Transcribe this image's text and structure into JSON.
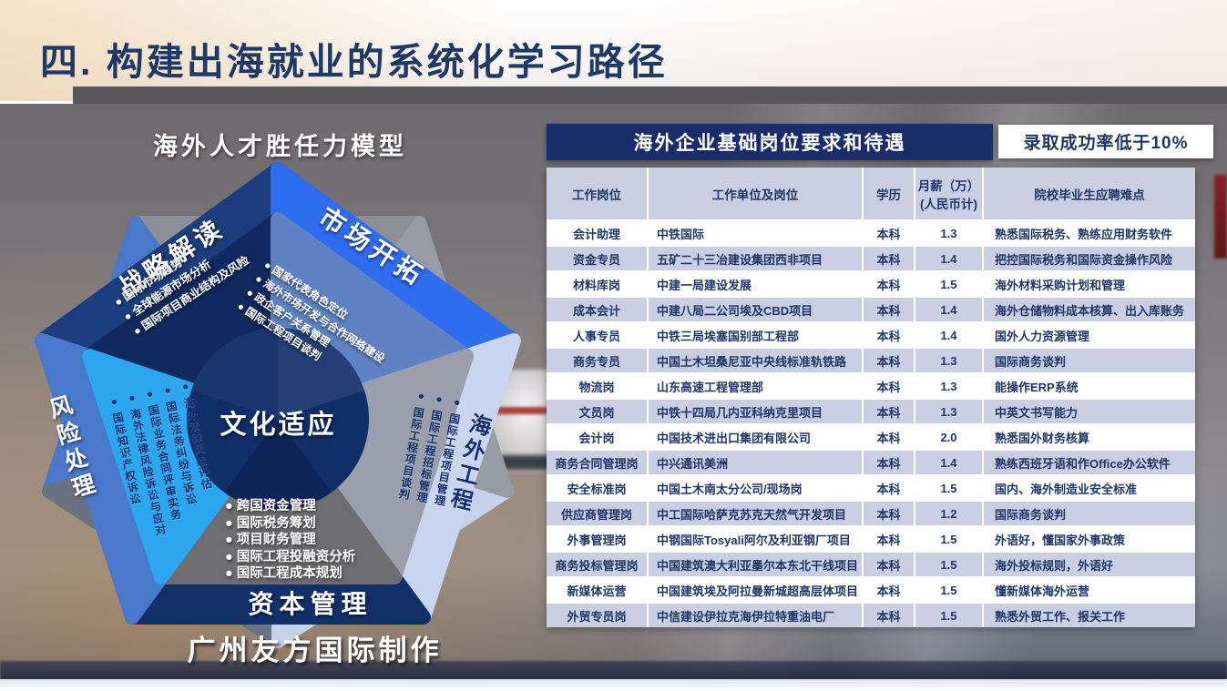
{
  "slide": {
    "title": "四. 构建出海就业的系统化学习路径"
  },
  "diagram": {
    "title": "海外人才胜任力模型",
    "center_label": "文化适应",
    "credit": "广州友方国际制作",
    "segments": [
      {
        "id": "strategy",
        "label": "战略解读",
        "bullets": [
          "国际市场趋势",
          "全球能源市场分析",
          "国际项目商业结构及风险"
        ]
      },
      {
        "id": "market",
        "label": "市场开拓",
        "bullets": [
          "国家代表角色定位",
          "海外市场开发与合作网络建设",
          "政企客户关系管理",
          "国际工程项目谈判"
        ]
      },
      {
        "id": "engineering",
        "label": "海外工程",
        "bullets": [
          "国际工程项目管理",
          "国际工程招标管理",
          "国际工程项目谈判"
        ]
      },
      {
        "id": "capital",
        "label": "资本管理",
        "bullets": [
          "跨国资金管理",
          "国际税务筹划",
          "项目财务管理",
          "国际工程投融资分析",
          "国际工程成本规划"
        ]
      },
      {
        "id": "risk",
        "label": "风险处理",
        "bullets": [
          "海外法律风险评估",
          "国际法务纠纷与诉讼",
          "国际业务合同评审实务",
          "海外法律风险诉讼与应对",
          "国际知识产权诉讼"
        ]
      }
    ],
    "colors": {
      "strategy_band": "#1c3e7e",
      "strategy_fill": "#122a5f",
      "market_band": "#2e6cf0",
      "market_fill": "#5f82c4",
      "engineering_band": "#c9d4ee",
      "engineering_fill": "#9aa0ab",
      "capital_band": "#133069",
      "capital_fill": "#6e6e71",
      "risk_band": "#4a78ca",
      "risk_fill": "#2aa7ee",
      "center_circle": "#102e6a",
      "backdrop_top": "#8e8f94",
      "backdrop_upper_left": "#4a77c9",
      "backdrop_lower_left": "#6a7282",
      "backdrop_lower_right": "#c6d2ec",
      "backdrop_right": "#979ba3"
    }
  },
  "panel": {
    "title": "海外企业基础岗位要求和待遇",
    "badge": "录取成功率低于10%",
    "colors": {
      "title_bg": "#1a2d6b",
      "title_text": "#ffffff",
      "badge_bg": "#ffffff",
      "badge_text": "#1e3766",
      "header_row_bg": "#c9cee3",
      "row_alt_bg": "#c9cee3",
      "row_bg": "#ffffff",
      "cell_text": "#1e3766"
    },
    "table": {
      "columns": [
        "工作岗位",
        "工作单位及岗位",
        "学历",
        "月薪（万）\n(人民币计)",
        "院校毕业生应聘难点"
      ],
      "rows": [
        [
          "会计助理",
          "中铁国际",
          "本科",
          "1.3",
          "熟悉国际税务、熟练应用财务软件"
        ],
        [
          "资金专员",
          "五矿二十三冶建设集团西非项目",
          "本科",
          "1.4",
          "把控国际税务和国际资金操作风险"
        ],
        [
          "材料库岗",
          "中建一局建设发展",
          "本科",
          "1.5",
          "海外材料采购计划和管理"
        ],
        [
          "成本会计",
          "中建八局二公司埃及CBD项目",
          "本科",
          "1.4",
          "海外仓储物料成本核算、出入库账务"
        ],
        [
          "人事专员",
          "中铁三局埃塞国别部工程部",
          "本科",
          "1.4",
          "国外人力资源管理"
        ],
        [
          "商务专员",
          "中国土木坦桑尼亚中央线标准轨铁路",
          "本科",
          "1.3",
          "国际商务谈判"
        ],
        [
          "物流岗",
          "山东高速工程管理部",
          "本科",
          "1.3",
          "能操作ERP系统"
        ],
        [
          "文员岗",
          "中铁十四局几内亚科纳克里项目",
          "本科",
          "1.3",
          "中英文书写能力"
        ],
        [
          "会计岗",
          "中国技术进出口集团有限公司",
          "本科",
          "2.0",
          "熟悉国外财务核算"
        ],
        [
          "商务合同管理岗",
          "中兴通讯美洲",
          "本科",
          "1.4",
          "熟练西班牙语和作Office办公软件"
        ],
        [
          "安全标准岗",
          "中国土木南太分公司/现场岗",
          "本科",
          "1.5",
          "国内、海外制造业安全标准"
        ],
        [
          "供应商管理岗",
          "中工国际哈萨克苏克天然气开发项目",
          "本科",
          "1.2",
          "国际商务谈判"
        ],
        [
          "外事管理岗",
          "中钢国际Tosyali阿尔及利亚钢厂项目",
          "本科",
          "1.5",
          "外语好，懂国家外事政策"
        ],
        [
          "商务投标管理岗",
          "中国建筑澳大利亚墨尔本东北干线项目",
          "本科",
          "1.5",
          "海外投标规则，外语好"
        ],
        [
          "新媒体运营",
          "中国建筑埃及阿拉曼新城超高层体项目",
          "本科",
          "1.5",
          "懂新媒体海外运营"
        ],
        [
          "外贸专员岗",
          "中信建设伊拉克海伊拉特重油电厂",
          "本科",
          "1.5",
          "熟悉外贸工作、报关工作"
        ]
      ]
    }
  }
}
